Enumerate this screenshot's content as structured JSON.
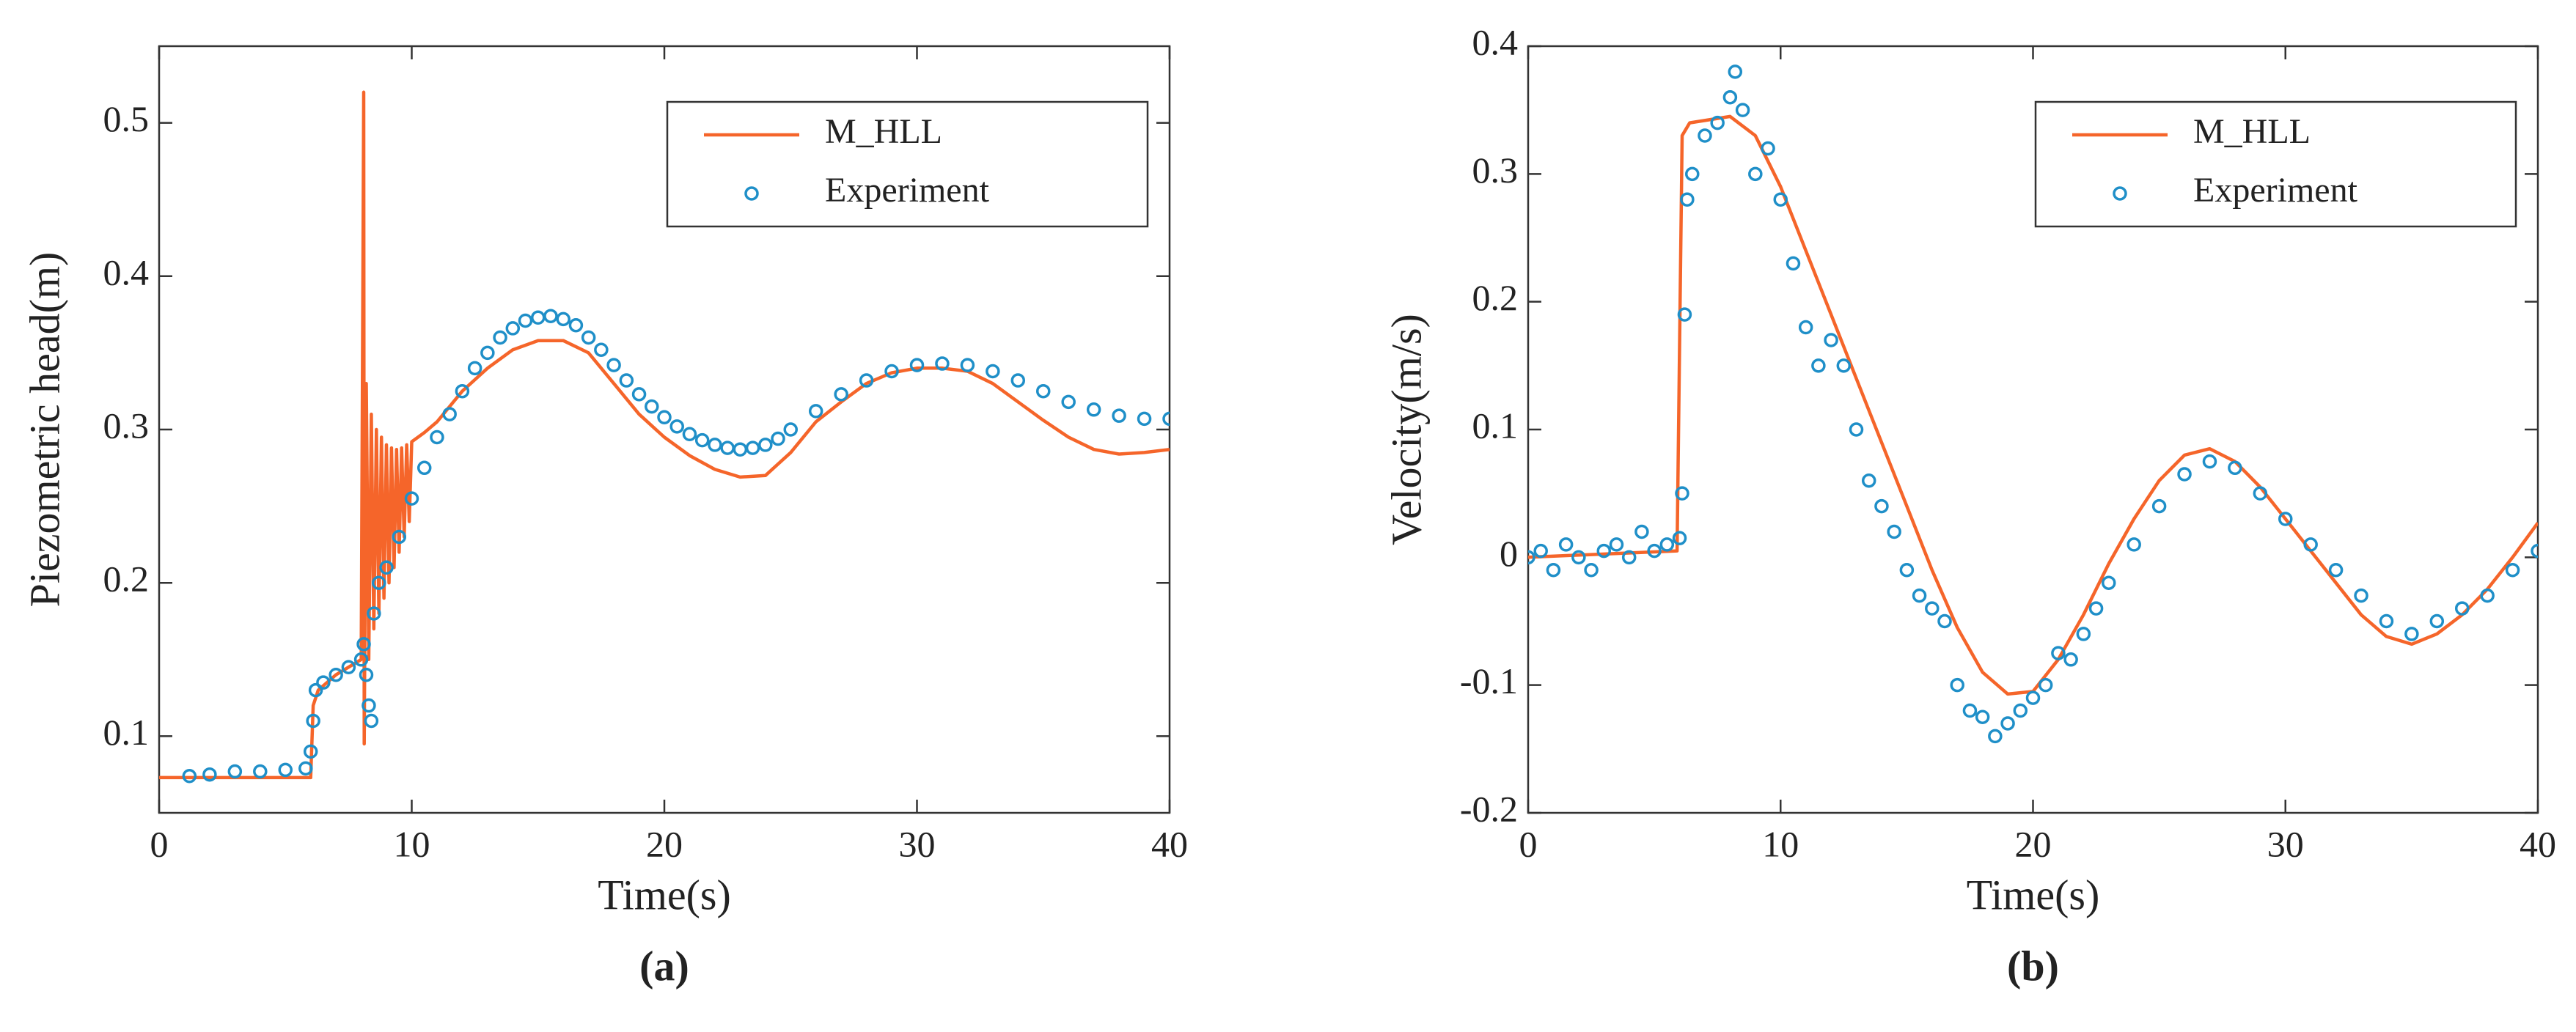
{
  "chart_data": [
    {
      "type": "line",
      "caption": "(a)",
      "xlabel": "Time(s)",
      "ylabel": "Piezometric head(m)",
      "xlim": [
        0,
        40
      ],
      "xticks": [
        0,
        10,
        20,
        30,
        40
      ],
      "ylim": [
        0.05,
        0.55
      ],
      "yticks": [
        0.1,
        0.2,
        0.3,
        0.4,
        0.5
      ],
      "legend": "northeast",
      "series": [
        {
          "name": "M_HLL",
          "style": "line",
          "color": "#f5652a",
          "x": [
            0,
            6,
            6.1,
            6.3,
            7,
            8,
            8.1,
            8.12,
            8.2,
            8.3,
            8.4,
            8.5,
            8.6,
            8.7,
            8.8,
            8.9,
            9.0,
            9.1,
            9.2,
            9.3,
            9.4,
            9.5,
            9.6,
            9.7,
            9.8,
            9.9,
            10,
            10.5,
            11,
            12,
            13,
            14,
            15,
            16,
            17,
            18,
            19,
            20,
            21,
            22,
            23,
            24,
            25,
            26,
            27,
            28,
            29,
            30,
            31,
            32,
            33,
            34,
            35,
            36,
            37,
            38,
            39,
            40
          ],
          "values": [
            0.073,
            0.073,
            0.12,
            0.13,
            0.14,
            0.15,
            0.52,
            0.095,
            0.33,
            0.15,
            0.31,
            0.17,
            0.3,
            0.18,
            0.295,
            0.19,
            0.29,
            0.2,
            0.288,
            0.21,
            0.287,
            0.22,
            0.288,
            0.23,
            0.29,
            0.24,
            0.292,
            0.298,
            0.305,
            0.325,
            0.34,
            0.352,
            0.358,
            0.358,
            0.35,
            0.33,
            0.31,
            0.295,
            0.283,
            0.274,
            0.269,
            0.27,
            0.285,
            0.305,
            0.318,
            0.33,
            0.337,
            0.34,
            0.34,
            0.338,
            0.33,
            0.318,
            0.306,
            0.295,
            0.287,
            0.284,
            0.285,
            0.287
          ]
        },
        {
          "name": "Experiment",
          "style": "marker",
          "color": "#1f8fc8",
          "x": [
            1.2,
            2,
            3,
            4,
            5,
            5.8,
            6.0,
            6.1,
            6.2,
            6.5,
            7,
            7.5,
            8,
            8.1,
            8.2,
            8.3,
            8.4,
            8.5,
            8.7,
            9,
            9.5,
            10,
            10.5,
            11,
            11.5,
            12,
            12.5,
            13,
            13.5,
            14,
            14.5,
            15,
            15.5,
            16,
            16.5,
            17,
            17.5,
            18,
            18.5,
            19,
            19.5,
            20,
            20.5,
            21,
            21.5,
            22,
            22.5,
            23,
            23.5,
            24,
            24.5,
            25,
            26,
            27,
            28,
            29,
            30,
            31,
            32,
            33,
            34,
            35,
            36,
            37,
            38,
            39,
            40
          ],
          "values": [
            0.074,
            0.075,
            0.077,
            0.077,
            0.078,
            0.079,
            0.09,
            0.11,
            0.13,
            0.135,
            0.14,
            0.145,
            0.15,
            0.16,
            0.14,
            0.12,
            0.11,
            0.18,
            0.2,
            0.21,
            0.23,
            0.255,
            0.275,
            0.295,
            0.31,
            0.325,
            0.34,
            0.35,
            0.36,
            0.366,
            0.371,
            0.373,
            0.374,
            0.372,
            0.368,
            0.36,
            0.352,
            0.342,
            0.332,
            0.323,
            0.315,
            0.308,
            0.302,
            0.297,
            0.293,
            0.29,
            0.288,
            0.287,
            0.288,
            0.29,
            0.294,
            0.3,
            0.312,
            0.323,
            0.332,
            0.338,
            0.342,
            0.343,
            0.342,
            0.338,
            0.332,
            0.325,
            0.318,
            0.313,
            0.309,
            0.307,
            0.307
          ]
        }
      ]
    },
    {
      "type": "line",
      "caption": "(b)",
      "xlabel": "Time(s)",
      "ylabel": "Velocity(m/s)",
      "xlim": [
        0,
        40
      ],
      "xticks": [
        0,
        10,
        20,
        30,
        40
      ],
      "ylim": [
        -0.2,
        0.4
      ],
      "yticks": [
        -0.2,
        -0.1,
        0,
        0.1,
        0.2,
        0.3,
        0.4
      ],
      "legend": "northeast",
      "series": [
        {
          "name": "M_HLL",
          "style": "line",
          "color": "#f5652a",
          "x": [
            0,
            5.9,
            6.1,
            6.4,
            8,
            9,
            10,
            11,
            12,
            13,
            14,
            15,
            16,
            17,
            18,
            19,
            20,
            21,
            22,
            23,
            24,
            25,
            26,
            27,
            28,
            29,
            30,
            31,
            32,
            33,
            34,
            35,
            36,
            37,
            38,
            39,
            40
          ],
          "values": [
            0,
            0.005,
            0.33,
            0.34,
            0.345,
            0.33,
            0.29,
            0.24,
            0.19,
            0.14,
            0.09,
            0.04,
            -0.01,
            -0.055,
            -0.09,
            -0.107,
            -0.105,
            -0.08,
            -0.045,
            -0.005,
            0.03,
            0.06,
            0.08,
            0.085,
            0.075,
            0.055,
            0.03,
            0.005,
            -0.02,
            -0.045,
            -0.062,
            -0.068,
            -0.06,
            -0.045,
            -0.025,
            0,
            0.027
          ]
        },
        {
          "name": "Experiment",
          "style": "marker",
          "color": "#1f8fc8",
          "x": [
            0,
            0.5,
            1,
            1.5,
            2,
            2.5,
            3,
            3.5,
            4,
            4.5,
            5,
            5.5,
            6,
            6.1,
            6.2,
            6.3,
            6.5,
            7,
            7.5,
            8,
            8.2,
            8.5,
            9,
            9.5,
            10,
            10.5,
            11,
            11.5,
            12,
            12.5,
            13,
            13.5,
            14,
            14.5,
            15,
            15.5,
            16,
            16.5,
            17,
            17.5,
            18,
            18.5,
            19,
            19.5,
            20,
            20.5,
            21,
            21.5,
            22,
            22.5,
            23,
            24,
            25,
            26,
            27,
            28,
            29,
            30,
            31,
            32,
            33,
            34,
            35,
            36,
            37,
            38,
            39,
            40
          ],
          "values": [
            0,
            0.005,
            -0.01,
            0.01,
            0,
            -0.01,
            0.005,
            0.01,
            0,
            0.02,
            0.005,
            0.01,
            0.015,
            0.05,
            0.19,
            0.28,
            0.3,
            0.33,
            0.34,
            0.36,
            0.38,
            0.35,
            0.3,
            0.32,
            0.28,
            0.23,
            0.18,
            0.15,
            0.17,
            0.15,
            0.1,
            0.06,
            0.04,
            0.02,
            -0.01,
            -0.03,
            -0.04,
            -0.05,
            -0.1,
            -0.12,
            -0.125,
            -0.14,
            -0.13,
            -0.12,
            -0.11,
            -0.1,
            -0.075,
            -0.08,
            -0.06,
            -0.04,
            -0.02,
            0.01,
            0.04,
            0.065,
            0.075,
            0.07,
            0.05,
            0.03,
            0.01,
            -0.01,
            -0.03,
            -0.05,
            -0.06,
            -0.05,
            -0.04,
            -0.03,
            -0.01,
            0.005
          ]
        }
      ]
    }
  ]
}
